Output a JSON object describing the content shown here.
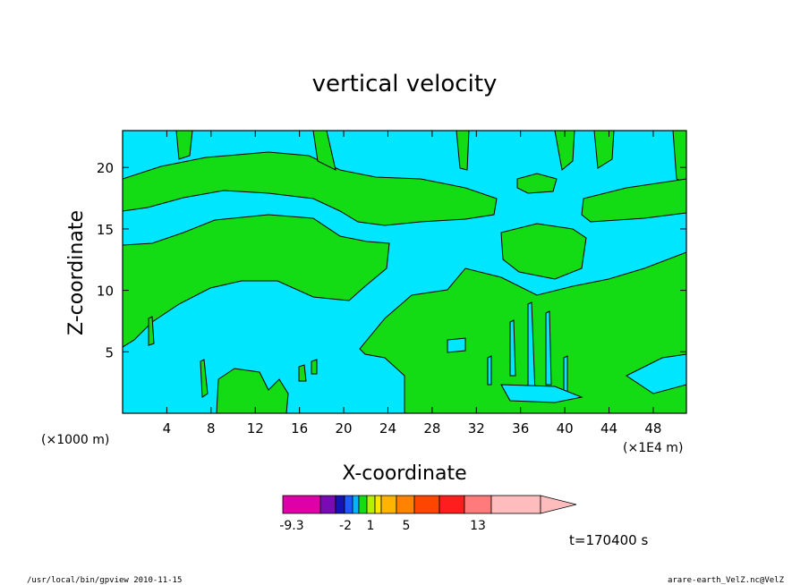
{
  "chart_data": {
    "type": "contour",
    "title": "vertical velocity",
    "xlabel": "X-coordinate",
    "ylabel": "Z-coordinate",
    "x_unit_left": "(×1000 m)",
    "x_unit_right": "(×1E4 m)",
    "x_ticks": [
      "4",
      "8",
      "12",
      "16",
      "20",
      "24",
      "28",
      "32",
      "36",
      "40",
      "44",
      "48"
    ],
    "y_ticks": [
      "5",
      "10",
      "15",
      "20"
    ],
    "xlim": [
      0,
      51
    ],
    "ylim": [
      0,
      23
    ],
    "time_label": "t=170400 s",
    "colorbar": {
      "labels": [
        "-9.3",
        "-2",
        "1",
        "5",
        "13"
      ],
      "colors": [
        "#e000a8",
        "#7a0ab4",
        "#1414b4",
        "#1e5aff",
        "#00b4ff",
        "#14dc14",
        "#b4f000",
        "#ffe600",
        "#ffb400",
        "#ff8200",
        "#ff4600",
        "#ff1e1e",
        "#ff7a7a",
        "#ffbcbc"
      ],
      "background_color": "#00e6ff",
      "positive_color": "#14dc14"
    },
    "regions_note": ""
  },
  "footer": {
    "left": "/usr/local/bin/gpview   2010-11-15",
    "right": "arare-earth_VelZ.nc@VelZ"
  }
}
